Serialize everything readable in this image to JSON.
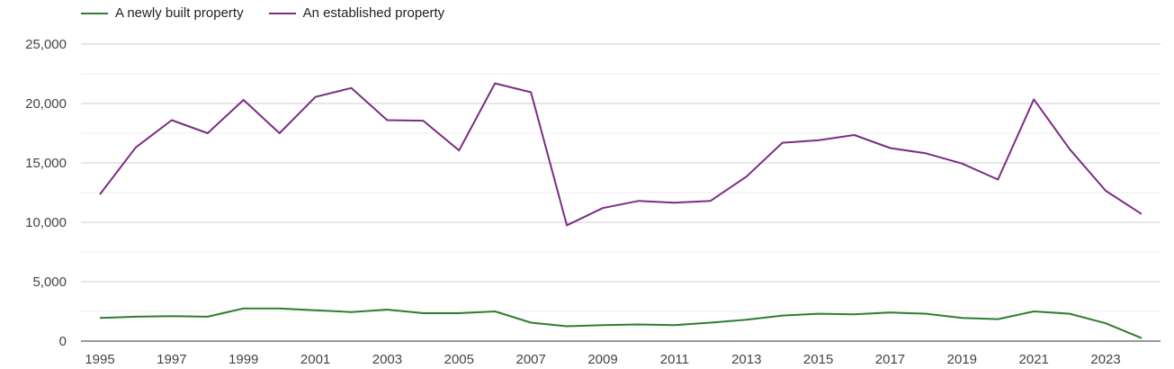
{
  "chart_data": {
    "type": "line",
    "title": "",
    "xlabel": "",
    "ylabel": "",
    "ylim": [
      0,
      25000
    ],
    "yticks": [
      0,
      5000,
      10000,
      15000,
      20000,
      25000
    ],
    "ytick_labels": [
      "0",
      "5,000",
      "10,000",
      "15,000",
      "20,000",
      "25,000"
    ],
    "x_tick_labels": [
      "1995",
      "1997",
      "1999",
      "2001",
      "2003",
      "2005",
      "2007",
      "2009",
      "2011",
      "2013",
      "2015",
      "2017",
      "2019",
      "2021",
      "2023"
    ],
    "x": [
      1995,
      1996,
      1997,
      1998,
      1999,
      2000,
      2001,
      2002,
      2003,
      2004,
      2005,
      2006,
      2007,
      2008,
      2009,
      2010,
      2011,
      2012,
      2013,
      2014,
      2015,
      2016,
      2017,
      2018,
      2019,
      2020,
      2021,
      2022,
      2023,
      2024
    ],
    "grid": true,
    "legend_position": "top-left",
    "series": [
      {
        "name": "A newly built property",
        "color": "#2e7d32",
        "values": [
          1950,
          2050,
          2100,
          2050,
          2750,
          2750,
          2600,
          2450,
          2650,
          2350,
          2350,
          2500,
          1550,
          1250,
          1350,
          1400,
          1350,
          1550,
          1800,
          2150,
          2300,
          2250,
          2400,
          2300,
          1950,
          1850,
          2500,
          2300,
          1500,
          250
        ]
      },
      {
        "name": "An established property",
        "color": "#7b2d82",
        "values": [
          12350,
          16300,
          18600,
          17500,
          20300,
          17500,
          20550,
          21300,
          18600,
          18550,
          16050,
          21700,
          20950,
          9750,
          11200,
          11800,
          11650,
          11800,
          13850,
          16700,
          16900,
          17350,
          16250,
          15800,
          14950,
          13600,
          20350,
          16150,
          12650,
          10700
        ]
      }
    ]
  }
}
